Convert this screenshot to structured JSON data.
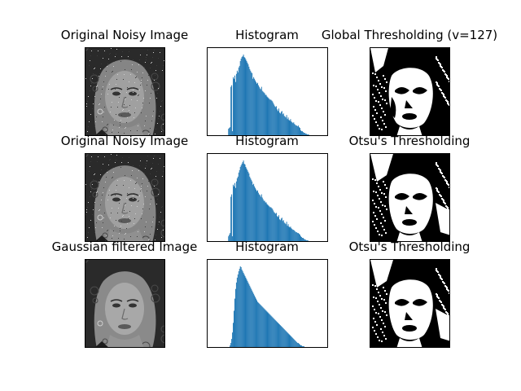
{
  "figure": {
    "rows": [
      {
        "image_title": "Original Noisy Image",
        "hist_title": "Histogram",
        "thresh_title": "Global Thresholding (v=127)",
        "image_kind": "noisy",
        "thresh_kind": "global"
      },
      {
        "image_title": "Original Noisy Image",
        "hist_title": "Histogram",
        "thresh_title": "Otsu's Thresholding",
        "image_kind": "noisy",
        "thresh_kind": "otsu"
      },
      {
        "image_title": "Gaussian filtered Image",
        "hist_title": "Histogram",
        "thresh_title": "Otsu's Thresholding",
        "image_kind": "gaussian",
        "thresh_kind": "otsu_gauss"
      }
    ]
  },
  "chart_data": [
    {
      "type": "bar",
      "title": "Histogram",
      "bar_color": "#1f77b4",
      "xlim": [
        0,
        256
      ],
      "ylim": [
        0,
        100
      ],
      "values": [
        0,
        0,
        0,
        0,
        0,
        0,
        0,
        0,
        0,
        0,
        0,
        0,
        0,
        0,
        0,
        0,
        0,
        0,
        0,
        0,
        8,
        9,
        10,
        60,
        62,
        5,
        72,
        70,
        74,
        66,
        76,
        80,
        78,
        84,
        86,
        92,
        95,
        97,
        98,
        100,
        97,
        96,
        94,
        92,
        90,
        88,
        85,
        82,
        80,
        78,
        77,
        70,
        72,
        70,
        68,
        66,
        64,
        65,
        62,
        60,
        58,
        57,
        60,
        55,
        54,
        53,
        52,
        50,
        50,
        48,
        47,
        46,
        45,
        44,
        44,
        43,
        42,
        40,
        38,
        36,
        35,
        36,
        32,
        30,
        33,
        28,
        27,
        29,
        30,
        26,
        27,
        24,
        23,
        22,
        25,
        20,
        22,
        19,
        18,
        20,
        17,
        16,
        15,
        16,
        14,
        13,
        12,
        12,
        11,
        12,
        10,
        9,
        6,
        5,
        5,
        4,
        3,
        3,
        2,
        2,
        1,
        1,
        1,
        0,
        0,
        0,
        0,
        0,
        0,
        0,
        0,
        0,
        0,
        0,
        0,
        0,
        0,
        0,
        0,
        0
      ]
    },
    {
      "type": "bar",
      "title": "Histogram",
      "bar_color": "#1f77b4",
      "xlim": [
        0,
        256
      ],
      "ylim": [
        0,
        100
      ],
      "values": [
        0,
        0,
        0,
        0,
        0,
        0,
        0,
        0,
        0,
        0,
        0,
        0,
        0,
        0,
        0,
        0,
        0,
        0,
        0,
        0,
        6,
        8,
        10,
        55,
        58,
        6,
        70,
        68,
        72,
        66,
        74,
        78,
        80,
        85,
        88,
        92,
        94,
        96,
        98,
        100,
        96,
        95,
        92,
        90,
        88,
        86,
        84,
        80,
        78,
        76,
        74,
        70,
        71,
        68,
        66,
        64,
        62,
        63,
        60,
        58,
        57,
        55,
        58,
        54,
        52,
        50,
        50,
        48,
        48,
        46,
        45,
        44,
        43,
        42,
        42,
        41,
        40,
        38,
        36,
        35,
        34,
        35,
        31,
        30,
        32,
        27,
        26,
        28,
        29,
        25,
        26,
        23,
        22,
        21,
        24,
        19,
        21,
        18,
        17,
        18,
        16,
        15,
        14,
        14,
        13,
        12,
        11,
        11,
        10,
        10,
        9,
        8,
        6,
        5,
        4,
        4,
        3,
        2,
        2,
        1,
        1,
        1,
        0,
        0,
        0,
        0,
        0,
        0,
        0,
        0,
        0,
        0,
        0,
        0,
        0,
        0,
        0,
        0,
        0,
        0
      ]
    },
    {
      "type": "bar",
      "title": "Histogram",
      "bar_color": "#1f77b4",
      "xlim": [
        0,
        256
      ],
      "ylim": [
        0,
        100
      ],
      "values": [
        0,
        0,
        0,
        0,
        0,
        0,
        0,
        0,
        0,
        0,
        0,
        0,
        0,
        0,
        0,
        0,
        0,
        0,
        0,
        0,
        0,
        0,
        2,
        5,
        10,
        18,
        30,
        45,
        60,
        72,
        80,
        86,
        90,
        94,
        97,
        100,
        99,
        96,
        94,
        92,
        90,
        88,
        86,
        84,
        82,
        80,
        78,
        76,
        74,
        72,
        70,
        68,
        66,
        64,
        62,
        60,
        58,
        56,
        55,
        54,
        53,
        52,
        51,
        50,
        49,
        48,
        47,
        46,
        45,
        44,
        43,
        42,
        41,
        40,
        39,
        38,
        37,
        36,
        35,
        34,
        33,
        32,
        31,
        30,
        29,
        28,
        27,
        26,
        25,
        24,
        23,
        22,
        21,
        20,
        19,
        18,
        17,
        16,
        15,
        14,
        13,
        12,
        11,
        10,
        9,
        8,
        7,
        6,
        5,
        5,
        4,
        3,
        2,
        2,
        1,
        1,
        1,
        0,
        0,
        0,
        0,
        0,
        0,
        0,
        0,
        0,
        0,
        0,
        0,
        0,
        0,
        0,
        0,
        0,
        0,
        0,
        0,
        0,
        0,
        0
      ]
    }
  ]
}
